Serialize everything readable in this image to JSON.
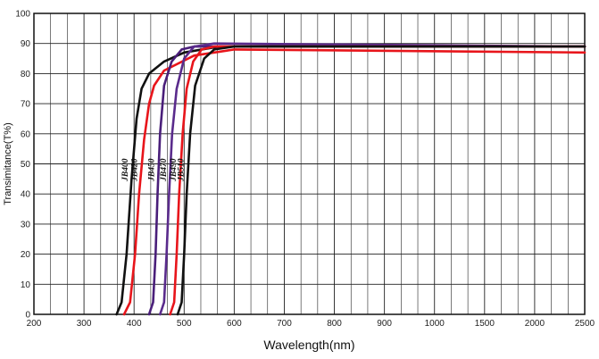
{
  "chart_data": {
    "type": "line",
    "xlabel": "Wavelength(nm)",
    "ylabel": "Transimitance(T%)",
    "x_tick_labels": [
      "200",
      "300",
      "400",
      "500",
      "600",
      "700",
      "800",
      "900",
      "1000",
      "1500",
      "2000",
      "2500"
    ],
    "y_tick_labels": [
      "0",
      "10",
      "20",
      "30",
      "40",
      "50",
      "60",
      "70",
      "80",
      "90",
      "100"
    ],
    "ylim": [
      0,
      100
    ],
    "grid": true,
    "series": [
      {
        "name": "JB400",
        "color": "#111111",
        "points": [
          [
            365,
            0
          ],
          [
            375,
            4
          ],
          [
            385,
            20
          ],
          [
            395,
            45
          ],
          [
            405,
            65
          ],
          [
            415,
            75
          ],
          [
            430,
            80
          ],
          [
            460,
            84
          ],
          [
            500,
            87
          ],
          [
            570,
            89
          ],
          [
            2500,
            89
          ]
        ]
      },
      {
        "name": "JB420",
        "color": "#e8151b",
        "points": [
          [
            380,
            0
          ],
          [
            392,
            4
          ],
          [
            402,
            20
          ],
          [
            410,
            40
          ],
          [
            420,
            58
          ],
          [
            430,
            70
          ],
          [
            440,
            76
          ],
          [
            460,
            81
          ],
          [
            520,
            86
          ],
          [
            600,
            88
          ],
          [
            2500,
            87
          ]
        ]
      },
      {
        "name": "JB450",
        "color": "#4a1f7a",
        "points": [
          [
            430,
            0
          ],
          [
            438,
            4
          ],
          [
            443,
            20
          ],
          [
            447,
            40
          ],
          [
            452,
            60
          ],
          [
            460,
            76
          ],
          [
            475,
            84
          ],
          [
            495,
            88
          ],
          [
            520,
            89
          ],
          [
            560,
            89
          ],
          [
            2500,
            89
          ]
        ]
      },
      {
        "name": "JB470",
        "color": "#5a2b8c",
        "points": [
          [
            452,
            0
          ],
          [
            460,
            4
          ],
          [
            465,
            20
          ],
          [
            470,
            40
          ],
          [
            476,
            60
          ],
          [
            485,
            75
          ],
          [
            500,
            85
          ],
          [
            520,
            89
          ],
          [
            560,
            90
          ],
          [
            2500,
            89
          ]
        ]
      },
      {
        "name": "JB490",
        "color": "#e8151b",
        "points": [
          [
            472,
            0
          ],
          [
            480,
            4
          ],
          [
            485,
            20
          ],
          [
            490,
            40
          ],
          [
            497,
            60
          ],
          [
            505,
            75
          ],
          [
            518,
            84
          ],
          [
            535,
            88
          ],
          [
            560,
            89
          ],
          [
            2500,
            89
          ]
        ]
      },
      {
        "name": "JB510",
        "color": "#111111",
        "points": [
          [
            487,
            0
          ],
          [
            495,
            4
          ],
          [
            500,
            20
          ],
          [
            505,
            40
          ],
          [
            512,
            60
          ],
          [
            522,
            76
          ],
          [
            540,
            85
          ],
          [
            560,
            88
          ],
          [
            600,
            89
          ],
          [
            2500,
            89
          ]
        ]
      }
    ]
  }
}
